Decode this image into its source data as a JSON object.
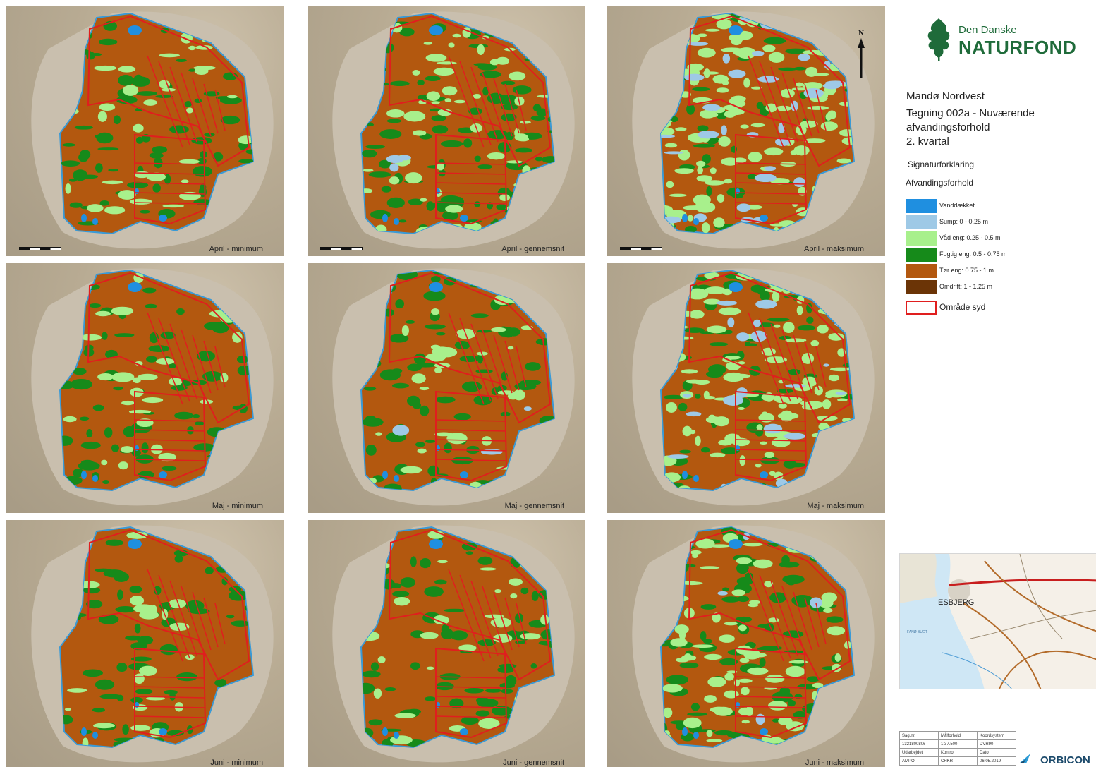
{
  "header": {
    "logo_top": "Den Danske",
    "logo_bottom": "NATURFOND",
    "north_label": "N"
  },
  "title": {
    "project": "Mandø Nordvest",
    "drawing_line1": "Tegning 002a - Nuværende",
    "drawing_line2": "afvandingsforhold",
    "drawing_line3": "2. kvartal"
  },
  "legend": {
    "heading": "Signaturforklaring",
    "subheading": "Afvandingsforhold",
    "items": [
      {
        "label": "Vanddækket",
        "color": "#1f8fe0"
      },
      {
        "label": "Sump: 0 - 0.25 m",
        "color": "#9ec9e6"
      },
      {
        "label": "Våd eng: 0.25 - 0.5 m",
        "color": "#a8f08c"
      },
      {
        "label": "Fugtig eng: 0.5 - 0.75 m",
        "color": "#168a1a"
      },
      {
        "label": "Tør eng: 0.75 - 1 m",
        "color": "#b3580f"
      },
      {
        "label": "Omdrift: 1 - 1.25 m",
        "color": "#6b3406"
      }
    ],
    "boundary_label": "Område syd",
    "boundary_color": "#e01e1e"
  },
  "panels": [
    {
      "caption": "April - minimum",
      "scale": true,
      "shares": {
        "water": 0.02,
        "sump": 0.0,
        "wet": 0.15,
        "moist": 0.35,
        "dry": 0.48
      }
    },
    {
      "caption": "April - gennemsnit",
      "scale": true,
      "shares": {
        "water": 0.03,
        "sump": 0.02,
        "wet": 0.25,
        "moist": 0.4,
        "dry": 0.3
      }
    },
    {
      "caption": "April - maksimum",
      "scale": true,
      "shares": {
        "water": 0.05,
        "sump": 0.15,
        "wet": 0.55,
        "moist": 0.15,
        "dry": 0.1
      }
    },
    {
      "caption": "Maj - minimum",
      "scale": false,
      "shares": {
        "water": 0.02,
        "sump": 0.0,
        "wet": 0.12,
        "moist": 0.3,
        "dry": 0.56
      }
    },
    {
      "caption": "Maj - gennemsnit",
      "scale": false,
      "shares": {
        "water": 0.02,
        "sump": 0.01,
        "wet": 0.15,
        "moist": 0.32,
        "dry": 0.5
      }
    },
    {
      "caption": "Maj - maksimum",
      "scale": false,
      "shares": {
        "water": 0.04,
        "sump": 0.1,
        "wet": 0.45,
        "moist": 0.25,
        "dry": 0.16
      }
    },
    {
      "caption": "Juni - minimum",
      "scale": false,
      "shares": {
        "water": 0.02,
        "sump": 0.0,
        "wet": 0.1,
        "moist": 0.28,
        "dry": 0.6
      }
    },
    {
      "caption": "Juni - gennemsnit",
      "scale": false,
      "shares": {
        "water": 0.02,
        "sump": 0.0,
        "wet": 0.12,
        "moist": 0.3,
        "dry": 0.56
      }
    },
    {
      "caption": "Juni - maksimum",
      "scale": false,
      "shares": {
        "water": 0.03,
        "sump": 0.02,
        "wet": 0.35,
        "moist": 0.4,
        "dry": 0.2
      }
    }
  ],
  "overview_map": {
    "city_label": "ESBJERG",
    "island_label": "FANØ BUGT"
  },
  "title_block": {
    "rows": [
      [
        "Sag.nr.",
        "Målforhold",
        "Koordsystem"
      ],
      [
        "1321800806",
        "1:37.500",
        "DVR90"
      ],
      [
        "Udarbejdet",
        "Kontrol",
        "Dato"
      ],
      [
        "AMPO",
        "CHKR",
        "06.05.2019"
      ]
    ],
    "company": "ORBICON"
  }
}
